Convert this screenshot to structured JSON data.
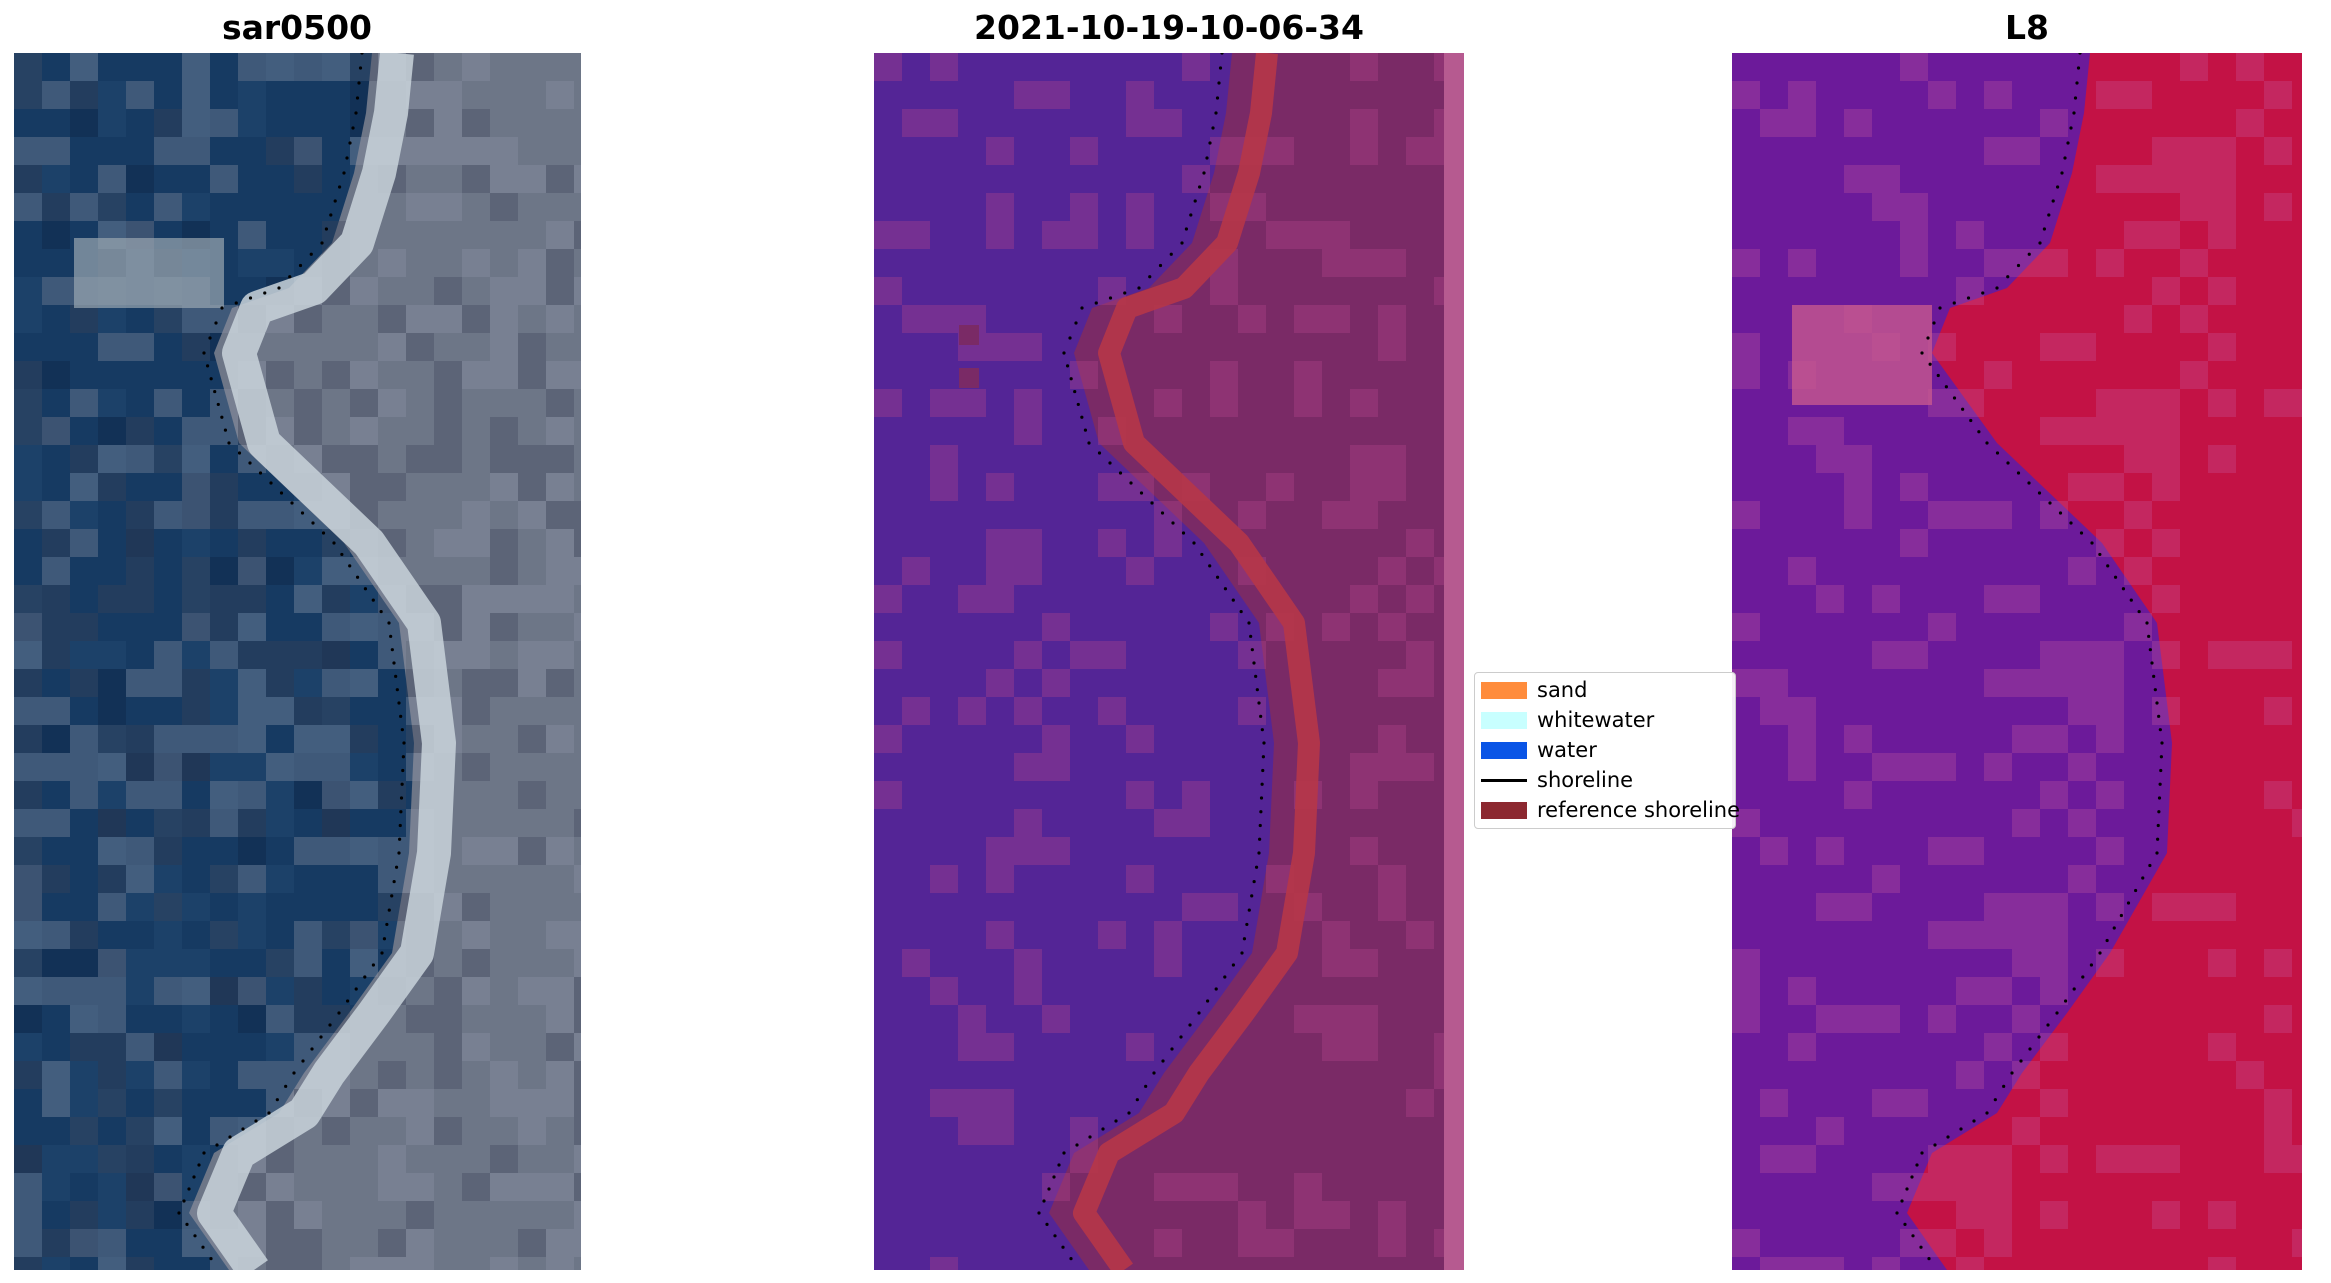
{
  "panels": [
    {
      "title": "sar0500"
    },
    {
      "title": "2021-10-19-10-06-34"
    },
    {
      "title": "L8"
    }
  ],
  "legend": {
    "items": [
      {
        "label": "sand",
        "color": "#ff8c3c",
        "kind": "patch"
      },
      {
        "label": "whitewater",
        "color": "#c8ffff",
        "kind": "patch"
      },
      {
        "label": "water",
        "color": "#0a55e6",
        "kind": "patch"
      },
      {
        "label": "shoreline",
        "color": "#000000",
        "kind": "line"
      },
      {
        "label": "reference shoreline",
        "color": "#8c2830",
        "kind": "patch"
      }
    ]
  },
  "colors": {
    "ocean": "#163a62",
    "land_gray": "#6d7687",
    "beach_light": "#c9d3da",
    "class_water": "#542596",
    "class_land": "#7a2a66",
    "class_sand": "#b63648",
    "class_edge": "#b65a90",
    "l8_water": "#6c1a9a",
    "l8_land": "#c31245"
  }
}
